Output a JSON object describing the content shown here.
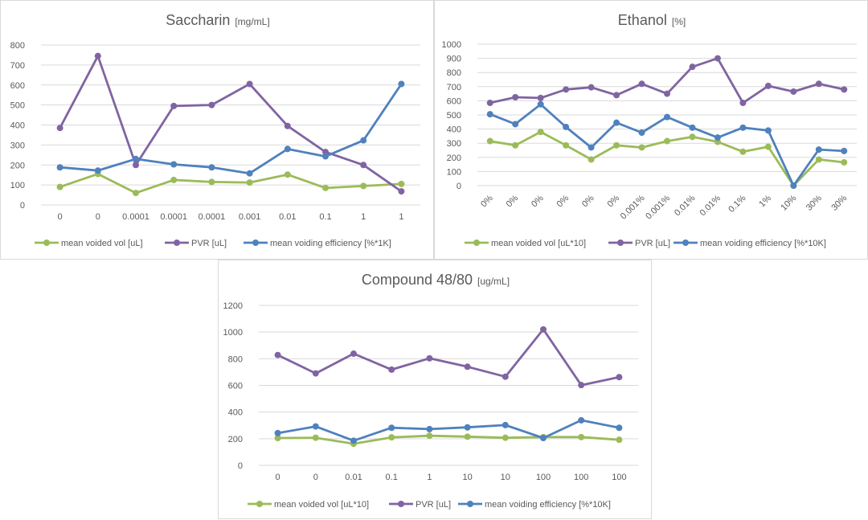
{
  "colors": {
    "green": "#9bbb59",
    "purple": "#8064a2",
    "blue": "#4f81bd"
  },
  "chart_data": [
    {
      "type": "line",
      "title": "Saccharin",
      "title_unit": "[mg/mL]",
      "categories": [
        "0",
        "0",
        "0.0001",
        "0.0001",
        "0.0001",
        "0.001",
        "0.01",
        "0.1",
        "1",
        "1"
      ],
      "ylim": [
        0,
        800
      ],
      "yticks": [
        0,
        100,
        200,
        300,
        400,
        500,
        600,
        700,
        800
      ],
      "grid": true,
      "legend_position": "bottom",
      "series": [
        {
          "name": "mean voided vol [uL]",
          "color": "#9bbb59",
          "values": [
            90,
            155,
            60,
            125,
            115,
            112,
            152,
            85,
            95,
            105
          ]
        },
        {
          "name": "PVR [uL]",
          "color": "#8064a2",
          "values": [
            385,
            745,
            200,
            495,
            500,
            605,
            395,
            265,
            200,
            68
          ]
        },
        {
          "name": "mean voiding efficiency [%*1K]",
          "color": "#4f81bd",
          "values": [
            188,
            172,
            230,
            203,
            188,
            158,
            280,
            243,
            323,
            605
          ]
        }
      ]
    },
    {
      "type": "line",
      "title": "Ethanol",
      "title_unit": "[%]",
      "categories": [
        "0%",
        "0%",
        "0%",
        "0%",
        "0%",
        "0%",
        "0.001%",
        "0.001%",
        "0.01%",
        "0.01%",
        "0.1%",
        "1%",
        "10%",
        "30%",
        "30%"
      ],
      "ylim": [
        0,
        1000
      ],
      "yticks": [
        0,
        100,
        200,
        300,
        400,
        500,
        600,
        700,
        800,
        900,
        1000
      ],
      "grid": true,
      "legend_position": "bottom",
      "series": [
        {
          "name": "mean voided vol [uL*10]",
          "color": "#9bbb59",
          "values": [
            315,
            285,
            380,
            285,
            185,
            285,
            270,
            315,
            345,
            310,
            240,
            275,
            0,
            185,
            165
          ]
        },
        {
          "name": "PVR [uL]",
          "color": "#8064a2",
          "values": [
            585,
            625,
            620,
            680,
            695,
            640,
            720,
            650,
            840,
            900,
            585,
            705,
            665,
            720,
            680
          ]
        },
        {
          "name": "mean voiding efficiency [%*10K]",
          "color": "#4f81bd",
          "values": [
            505,
            435,
            575,
            415,
            270,
            445,
            375,
            485,
            410,
            340,
            410,
            390,
            0,
            255,
            245
          ]
        }
      ]
    },
    {
      "type": "line",
      "title": "Compound 48/80",
      "title_unit": "[ug/mL]",
      "categories": [
        "0",
        "0",
        "0.01",
        "0.1",
        "1",
        "10",
        "10",
        "100",
        "100",
        "100"
      ],
      "ylim": [
        0,
        1200
      ],
      "yticks": [
        0,
        200,
        400,
        600,
        800,
        1000,
        1200
      ],
      "grid": true,
      "legend_position": "bottom",
      "series": [
        {
          "name": "mean voided vol [uL*10]",
          "color": "#9bbb59",
          "values": [
            205,
            207,
            162,
            210,
            222,
            215,
            207,
            212,
            212,
            192
          ]
        },
        {
          "name": "PVR [uL]",
          "color": "#8064a2",
          "values": [
            828,
            690,
            838,
            718,
            803,
            740,
            665,
            1020,
            602,
            662
          ]
        },
        {
          "name": "mean voiding efficiency [%*10K]",
          "color": "#4f81bd",
          "values": [
            242,
            292,
            185,
            282,
            272,
            285,
            302,
            205,
            338,
            282
          ]
        }
      ]
    }
  ]
}
